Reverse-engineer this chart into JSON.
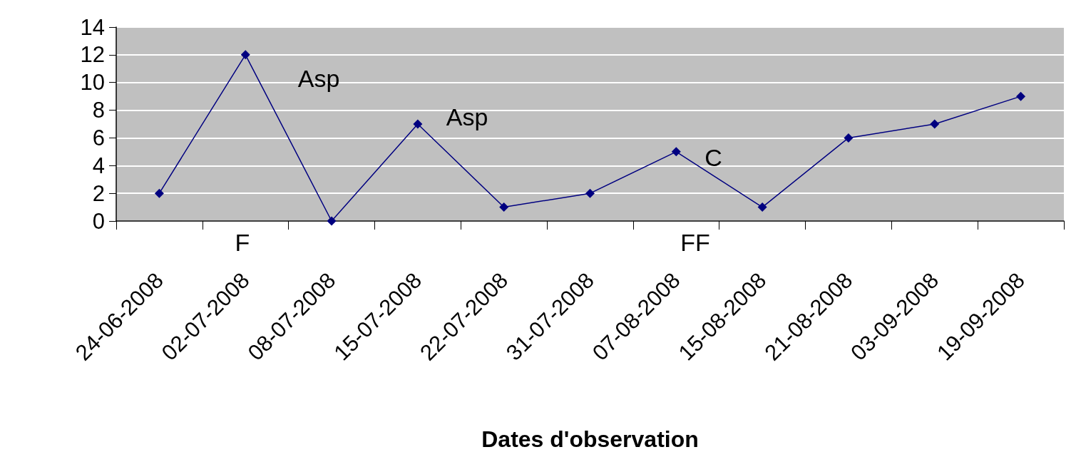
{
  "chart_data": {
    "type": "line",
    "xlabel": "Dates d'observation",
    "categories": [
      "24-06-2008",
      "02-07-2008",
      "08-07-2008",
      "15-07-2008",
      "22-07-2008",
      "31-07-2008",
      "07-08-2008",
      "15-08-2008",
      "21-08-2008",
      "03-09-2008",
      "19-09-2008"
    ],
    "series": [
      {
        "color": "#000080",
        "values": [
          2,
          12,
          0,
          7,
          1,
          2,
          5,
          1,
          6,
          7,
          9
        ]
      }
    ],
    "ylim": [
      0,
      14
    ],
    "yticks": [
      0,
      2,
      4,
      6,
      8,
      10,
      12,
      14
    ],
    "grid": "y",
    "marker": "diamond",
    "line_style": "solid",
    "annotations": [
      "Asp",
      {
        "text": "Asp",
        "x": "15-07-2008",
        "y": 7.5
      },
      {
        "text": "C",
        "x": "07-08-2008",
        "y": 4.6
      },
      "F",
      "FF"
    ]
  }
}
